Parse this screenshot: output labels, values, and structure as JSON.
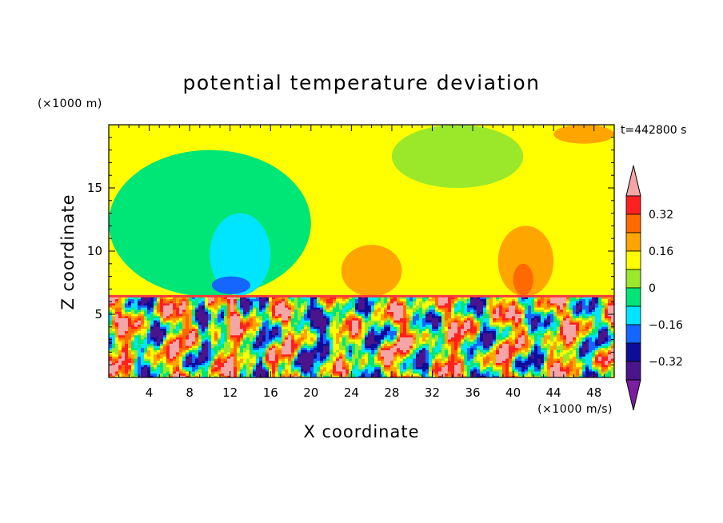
{
  "chart_data": {
    "type": "heatmap",
    "title": "potential temperature deviation",
    "xlabel": "X coordinate",
    "ylabel": "Z coordinate",
    "x_unit": "(×1000 m/s)",
    "y_unit": "(×1000 m)",
    "time_label": "t=442800 s",
    "xlim": [
      0,
      50
    ],
    "ylim": [
      0,
      20
    ],
    "x_ticks": [
      4,
      8,
      12,
      16,
      20,
      24,
      28,
      32,
      36,
      40,
      44,
      48
    ],
    "y_ticks": [
      5,
      10,
      15
    ],
    "colorbar": {
      "levels": [
        -0.48,
        -0.4,
        -0.32,
        -0.24,
        -0.16,
        -0.08,
        0,
        0.08,
        0.16,
        0.24,
        0.32,
        0.4,
        0.48
      ],
      "labels": [
        "0.32",
        "0.16",
        "0",
        "−0.16",
        "−0.32"
      ],
      "label_values": [
        0.32,
        0.16,
        0,
        -0.16,
        -0.32
      ],
      "colors": [
        "#7b1fa2",
        "#4a148c",
        "#0d0d9a",
        "#1565ff",
        "#00e5ff",
        "#00e676",
        "#9be82a",
        "#ffff00",
        "#ffa500",
        "#ff6a00",
        "#ff2020",
        "#f4a6a6"
      ]
    },
    "regions": [
      {
        "label": "upper layer background",
        "value": 0.04,
        "x": [
          0,
          50
        ],
        "z": [
          6.4,
          20
        ]
      },
      {
        "label": "upper-left trough",
        "value": -0.1,
        "x": [
          0,
          20
        ],
        "z": [
          6.4,
          18
        ]
      },
      {
        "label": "upper-left core",
        "value": -0.2,
        "x": [
          10,
          16
        ],
        "z": [
          6.5,
          13
        ]
      },
      {
        "label": "upper-left deep core",
        "value": -0.3,
        "x": [
          10.2,
          14
        ],
        "z": [
          6.6,
          8
        ]
      },
      {
        "label": "top-center trough",
        "value": -0.04,
        "x": [
          28,
          41
        ],
        "z": [
          15,
          20
        ]
      },
      {
        "label": "warm plume A",
        "value": 0.12,
        "x": [
          23,
          29
        ],
        "z": [
          6.4,
          10.5
        ]
      },
      {
        "label": "warm plume B",
        "value": 0.12,
        "x": [
          38.5,
          44
        ],
        "z": [
          6.4,
          12
        ]
      },
      {
        "label": "warm plume B core",
        "value": 0.2,
        "x": [
          40,
          42
        ],
        "z": [
          6.5,
          9
        ]
      },
      {
        "label": "top-right warm patch",
        "value": 0.12,
        "x": [
          44,
          50
        ],
        "z": [
          18.5,
          20
        ]
      }
    ]
  }
}
